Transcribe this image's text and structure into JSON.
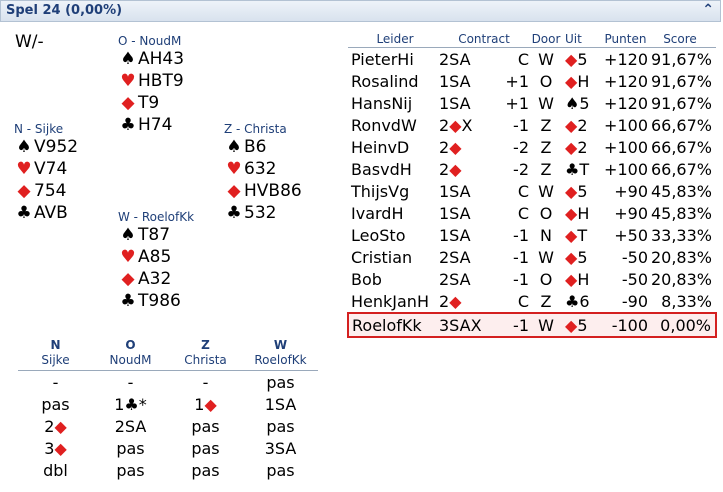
{
  "title": "Spel 24  (0,00%)",
  "collapse_glyph": "⌃",
  "vulnerability": "W/-",
  "suit_symbols": {
    "spades": "♠",
    "hearts": "♥",
    "diamonds": "◆",
    "clubs": "♣"
  },
  "colors": {
    "red": "#e02020",
    "header_blue": "#1f3f78",
    "highlight_border": "#d42020"
  },
  "hands": {
    "north": {
      "label": "O - NoudM",
      "spades": "AH43",
      "hearts": "HBT9",
      "diamonds": "T9",
      "clubs": "H74"
    },
    "west": {
      "label": "N - Sijke",
      "spades": "V952",
      "hearts": "V74",
      "diamonds": "754",
      "clubs": "AVB"
    },
    "east": {
      "label": "Z - Christa",
      "spades": "B6",
      "hearts": "632",
      "diamonds": "HVB86",
      "clubs": "532"
    },
    "south": {
      "label": "W - RoelofKk",
      "spades": "T87",
      "hearts": "A85",
      "diamonds": "A32",
      "clubs": "T986"
    }
  },
  "results": {
    "headers": [
      "Leider",
      "Contract",
      "Door",
      "Uit",
      "Punten",
      "Score"
    ],
    "rows": [
      {
        "leider": "PieterHi",
        "contract": "2SA",
        "x": "C",
        "door": "W",
        "uit_suit": "diamonds",
        "uit_rank": "5",
        "punten": "+120",
        "score": "91,67%"
      },
      {
        "leider": "Rosalind",
        "contract": "1SA",
        "x": "+1",
        "door": "O",
        "uit_suit": "diamonds",
        "uit_rank": "H",
        "punten": "+120",
        "score": "91,67%"
      },
      {
        "leider": "HansNij",
        "contract": "1SA",
        "x": "+1",
        "door": "W",
        "uit_suit": "spades",
        "uit_rank": "5",
        "punten": "+120",
        "score": "91,67%"
      },
      {
        "leider": "RonvdW",
        "contract": "2◆X",
        "x": "-1",
        "door": "Z",
        "uit_suit": "diamonds",
        "uit_rank": "2",
        "punten": "+100",
        "score": "66,67%"
      },
      {
        "leider": "HeinvD",
        "contract": "2◆",
        "x": "-2",
        "door": "Z",
        "uit_suit": "diamonds",
        "uit_rank": "2",
        "punten": "+100",
        "score": "66,67%"
      },
      {
        "leider": "BasvdH",
        "contract": "2◆",
        "x": "-2",
        "door": "Z",
        "uit_suit": "clubs",
        "uit_rank": "T",
        "punten": "+100",
        "score": "66,67%"
      },
      {
        "leider": "ThijsVg",
        "contract": "1SA",
        "x": "C",
        "door": "W",
        "uit_suit": "diamonds",
        "uit_rank": "5",
        "punten": "+90",
        "score": "45,83%"
      },
      {
        "leider": "IvardH",
        "contract": "1SA",
        "x": "C",
        "door": "O",
        "uit_suit": "diamonds",
        "uit_rank": "H",
        "punten": "+90",
        "score": "45,83%"
      },
      {
        "leider": "LeoSto",
        "contract": "1SA",
        "x": "-1",
        "door": "N",
        "uit_suit": "diamonds",
        "uit_rank": "T",
        "punten": "+50",
        "score": "33,33%"
      },
      {
        "leider": "Cristian",
        "contract": "2SA",
        "x": "-1",
        "door": "W",
        "uit_suit": "diamonds",
        "uit_rank": "5",
        "punten": "-50",
        "score": "20,83%"
      },
      {
        "leider": "Bob",
        "contract": "2SA",
        "x": "-1",
        "door": "O",
        "uit_suit": "diamonds",
        "uit_rank": "H",
        "punten": "-50",
        "score": "20,83%"
      },
      {
        "leider": "HenkJanH",
        "contract": "2◆",
        "x": "C",
        "door": "Z",
        "uit_suit": "clubs",
        "uit_rank": "6",
        "punten": "-90",
        "score": "8,33%"
      },
      {
        "leider": "RoelofKk",
        "contract": "3SAX",
        "x": "-1",
        "door": "W",
        "uit_suit": "diamonds",
        "uit_rank": "5",
        "punten": "-100",
        "score": "0,00%",
        "highlight": true
      }
    ]
  },
  "bidding": {
    "columns": [
      {
        "dir": "N",
        "name": "Sijke"
      },
      {
        "dir": "O",
        "name": "NoudM"
      },
      {
        "dir": "Z",
        "name": "Christa"
      },
      {
        "dir": "W",
        "name": "RoelofKk"
      }
    ],
    "rows": [
      [
        "-",
        "-",
        "-",
        "pas"
      ],
      [
        "pas",
        "1♣*",
        "1◆",
        "1SA"
      ],
      [
        "2◆",
        "2SA",
        "pas",
        "pas"
      ],
      [
        "3◆",
        "pas",
        "pas",
        "3SA"
      ],
      [
        "dbl",
        "pas",
        "pas",
        "pas"
      ]
    ]
  }
}
